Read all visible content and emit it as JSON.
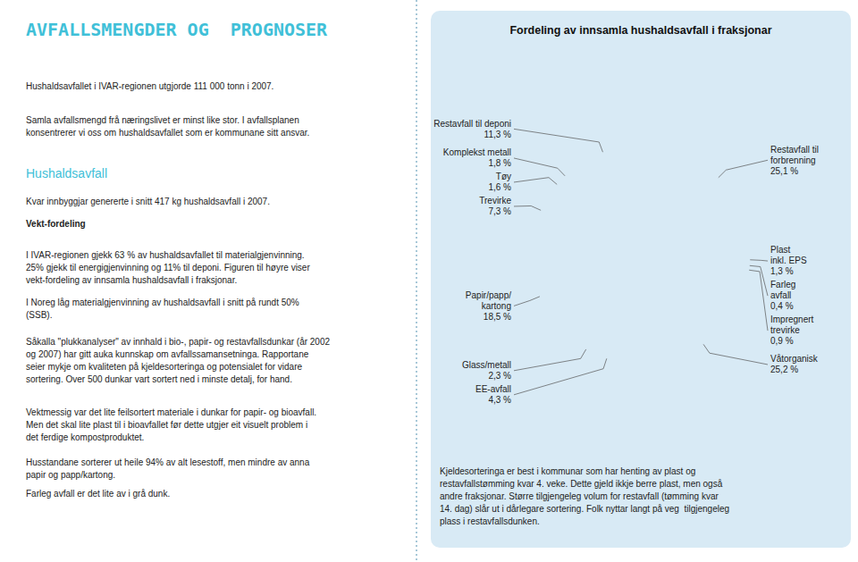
{
  "page_title": "AVFALLSMENGDER OG  PROGNOSER",
  "page_texts": [
    "Hushaldsavfallet i IVAR-regionen utgjorde 111 000 tonn i 2007.",
    "Samla avfallsmengd frå næringslivet er minst like stor. I avfallsplanen\nkonsentrerer vi oss om hushaldsavfallet som er kommunane sitt ansvar.",
    "Hushaldsavfall",
    "Kvar innbyggjar genererte i snitt 417 kg hushaldsavfall i 2007.",
    "Vekt-fordeling",
    "I IVAR-regionen gjekk 63 % av hushaldsavfallet til materialgjenvinning.\n25% gjekk til energigjenvinning og 11% til deponi. Figuren til høyre viser\nvekt-fordeling av innsamla hushaldsavfall i fraksjonar.",
    "I Noreg låg materialgjenvinning av hushaldsavfall i snitt på rundt 50%\n(SSB).",
    "Såkalla \"plukkanalyser\" av innhald i bio-, papir- og restavfallsdunkar (år 2002\nog 2007) har gitt auka kunnskap om avfallssamansetninga. Rapportane\nseier mykje om kvaliteten på kjeldesorteringa og potensialet for vidare\nsortering. Over 500 dunkar vart sortert ned i minste detalj, for hand.",
    "Vektmessig var det lite feilsortert materiale i dunkar for papir- og bioavfall.\nMen det skal lite plast til i bioavfallet før dette utgjer eit visuelt problem i\ndet ferdige kompostproduktet.",
    "Husstandane sorterer ut heile 94% av alt lesestoff, men mindre av anna\npapir og papp/kartong.",
    "Farleg avfall er det lite av i grå dunk."
  ],
  "footer_text": "Kjeldesorteringa er best i kommunar som har henting av plast og\nrestavfallstømming kvar 4. veke. Dette gjeld ikkje berre plast, men også\nandre fraksjonar. Større tilgjengeleg volum for restavfall (tømming kvar\n14. dag) slår ut i dårlegare sortering. Folk nyttar langt på veg  tilgjengeleg\nplass i restavfallsdunken.",
  "chart_data": {
    "type": "pie",
    "title": "Fordeling av innsamla hushaldsavfall i fraksjonar",
    "categories": [
      "Restavfall til\nforbrenning",
      "Plast\ninkl. EPS",
      "Farleg\navfall",
      "Impregnert\ntrevirke",
      "Våtorganisk",
      "EE-avfall",
      "Glass/metall",
      "Papir/papp/\nkartong",
      "Trevirke",
      "Tøy",
      "Komplekst metall",
      "Restavfall til deponi"
    ],
    "values": [
      25.1,
      1.3,
      0.4,
      0.9,
      25.2,
      4.3,
      2.3,
      18.5,
      7.3,
      1.6,
      1.8,
      11.3
    ],
    "value_labels": [
      "25,1 %",
      "1,3 %",
      "0,4 %",
      "0,9 %",
      "25,2 %",
      "4,3 %",
      "2,3 %",
      "18,5 %",
      "7,3 %",
      "1,6 %",
      "1,8 %",
      "11,3 %"
    ],
    "colors": [
      "#c0143c",
      "#f5a000",
      "#e03010",
      "#005580",
      "#f5c800",
      "#8b1a8b",
      "#5aaa28",
      "#45b0e0",
      "#78b040",
      "#c8d400",
      "#a8a8a8",
      "#50a030"
    ],
    "data_labels": true
  }
}
